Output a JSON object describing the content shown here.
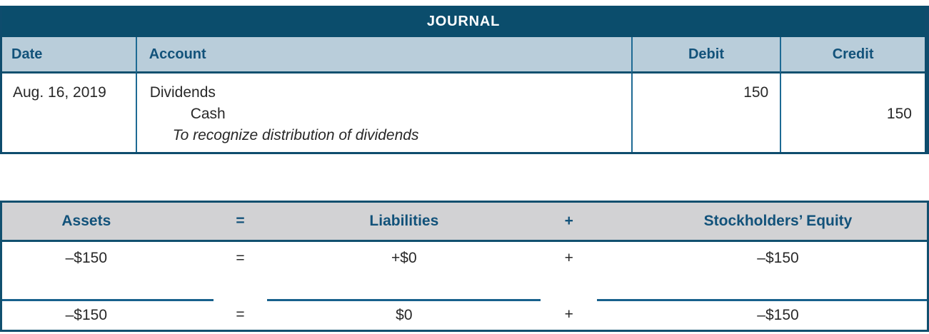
{
  "journal": {
    "title": "JOURNAL",
    "columns": {
      "date": "Date",
      "account": "Account",
      "debit": "Debit",
      "credit": "Credit"
    },
    "entry": {
      "date": "Aug. 16, 2019",
      "line1": "Dividends",
      "line2": "Cash",
      "memo": "To recognize distribution of dividends",
      "debit": "150",
      "credit": "150"
    }
  },
  "equation": {
    "headers": {
      "assets": "Assets",
      "equals": "=",
      "liabilities": "Liabilities",
      "plus": "+",
      "equity": "Stockholders’ Equity"
    },
    "row1": {
      "assets": "–$150",
      "equals": "=",
      "liabilities": "+$0",
      "plus": "+",
      "equity": "–$150"
    },
    "totals": {
      "assets": "–$150",
      "equals": "=",
      "liabilities": "$0",
      "plus": "+",
      "equity": "–$150"
    }
  },
  "colors": {
    "title_bar_bg": "#0b4d6c",
    "column_header_bg": "#b9cdda",
    "header_text": "#12527a",
    "border": "#11506f",
    "equation_header_bg": "#d2d2d4",
    "body_text": "#282828"
  }
}
